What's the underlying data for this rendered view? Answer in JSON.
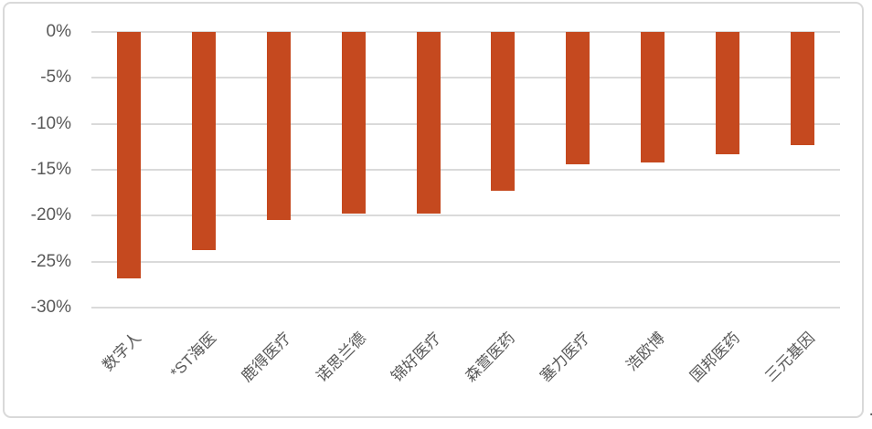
{
  "chart_data": {
    "type": "bar",
    "title": "",
    "xlabel": "",
    "ylabel": "",
    "categories": [
      "数字人",
      "*ST海医",
      "鹿得医疗",
      "诺思兰德",
      "锦好医疗",
      "森萱医药",
      "塞力医疗",
      "浩欧博",
      "国邦医药",
      "三元基因"
    ],
    "values": [
      -26.8,
      -23.7,
      -20.5,
      -19.8,
      -19.8,
      -17.3,
      -14.4,
      -14.2,
      -13.3,
      -12.3
    ],
    "unit": "%",
    "ylim": [
      -30,
      0
    ],
    "y_ticks": [
      0,
      -5,
      -10,
      -15,
      -20,
      -25,
      -30
    ],
    "y_tick_labels": [
      "0%",
      "-5%",
      "-10%",
      "-15%",
      "-20%",
      "-25%",
      "-30%"
    ],
    "grid": true,
    "legend": false,
    "legend_position": "none"
  },
  "colors": {
    "bar": "#C5491F",
    "gridline": "#DADADA",
    "axis_text": "#595959",
    "frame_border": "#D9D9D9",
    "background": "#FFFFFF"
  },
  "footer": {
    "dot": "."
  }
}
